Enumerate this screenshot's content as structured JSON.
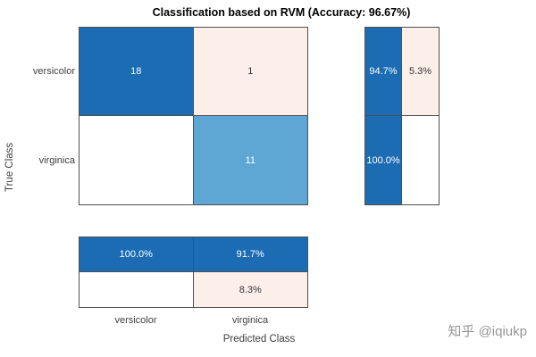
{
  "title": "Classification based on RVM (Accuracy: 96.67%)",
  "axes": {
    "y_label": "True Class",
    "x_label": "Predicted Class",
    "y_ticks": [
      "versicolor",
      "virginica"
    ],
    "x_ticks": [
      "versicolor",
      "virginica"
    ]
  },
  "chart_data": {
    "type": "heatmap",
    "subtype": "confusion-matrix",
    "title": "Classification based on RVM (Accuracy: 96.67%)",
    "accuracy_percent": 96.67,
    "classes": [
      "versicolor",
      "virginica"
    ],
    "matrix": [
      [
        18,
        1
      ],
      [
        0,
        11
      ]
    ],
    "cells": [
      [
        "18",
        "1"
      ],
      [
        "",
        "11"
      ]
    ],
    "row_summary": [
      [
        "94.7%",
        "5.3%"
      ],
      [
        "100.0%",
        ""
      ]
    ],
    "col_summary": [
      [
        "100.0%",
        "91.7%"
      ],
      [
        "",
        "8.3%"
      ]
    ],
    "legend_position": "none",
    "grid": false,
    "colors": {
      "correct_dark": "#1b6cb3",
      "correct_medium": "#5ea6d4",
      "incorrect_light": "#fcefe9",
      "empty": "#ffffff"
    }
  },
  "watermark": "知乎 @iqiukp"
}
